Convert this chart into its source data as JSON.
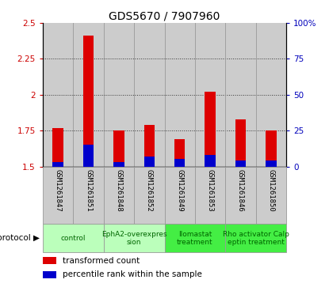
{
  "title": "GDS5670 / 7907960",
  "samples": [
    "GSM1261847",
    "GSM1261851",
    "GSM1261848",
    "GSM1261852",
    "GSM1261849",
    "GSM1261853",
    "GSM1261846",
    "GSM1261850"
  ],
  "transformed_counts": [
    1.77,
    2.41,
    1.75,
    1.79,
    1.69,
    2.02,
    1.83,
    1.75
  ],
  "percentile_ranks": [
    3,
    15,
    3,
    7,
    5,
    8,
    4,
    4
  ],
  "ylim_left": [
    1.5,
    2.5
  ],
  "ylim_right": [
    0,
    100
  ],
  "yticks_left": [
    1.5,
    1.75,
    2.0,
    2.25,
    2.5
  ],
  "ytick_labels_left": [
    "1.5",
    "1.75",
    "2",
    "2.25",
    "2.5"
  ],
  "yticks_right": [
    0,
    25,
    50,
    75,
    100
  ],
  "ytick_labels_right": [
    "0",
    "25",
    "50",
    "75",
    "100%"
  ],
  "protocols": [
    {
      "label": "control",
      "start": 0,
      "end": 2,
      "color": "#bbffbb"
    },
    {
      "label": "EphA2-overexpres\nsion",
      "start": 2,
      "end": 4,
      "color": "#bbffbb"
    },
    {
      "label": "Ilomastat\ntreatment",
      "start": 4,
      "end": 6,
      "color": "#44ee44"
    },
    {
      "label": "Rho activator Calp\neptin treatment",
      "start": 6,
      "end": 8,
      "color": "#44ee44"
    }
  ],
  "bar_color_red": "#dd0000",
  "bar_color_blue": "#0000cc",
  "bar_width": 0.35,
  "bg_color": "#cccccc",
  "plot_bg": "#ffffff",
  "left_tick_color": "#cc0000",
  "right_tick_color": "#0000bb",
  "gridline_color": "#333333",
  "col_divider_color": "#999999",
  "legend_sq_size": 0.015
}
